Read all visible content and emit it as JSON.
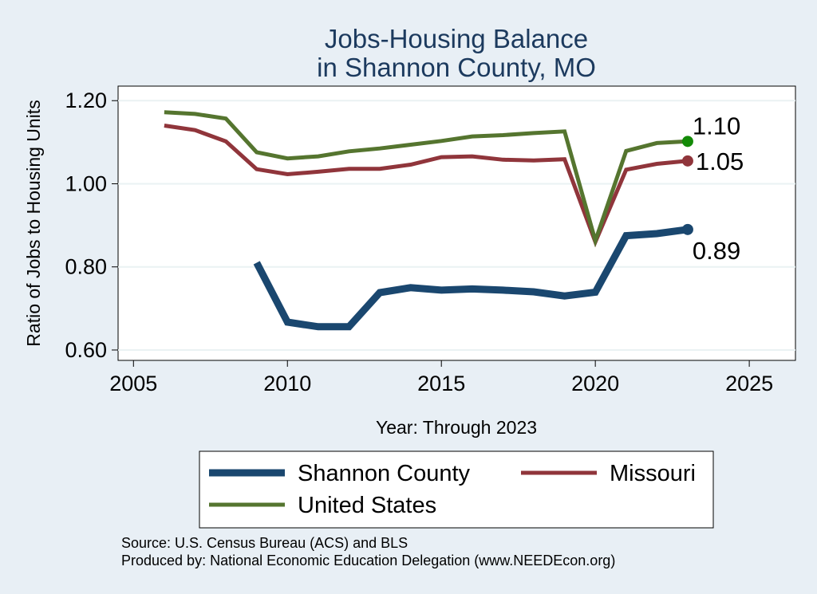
{
  "chart_data": {
    "type": "line",
    "title": [
      "Jobs-Housing Balance",
      "in Shannon County, MO"
    ],
    "xlabel": "Year: Through 2023",
    "ylabel": "Ratio of Jobs to Housing Units",
    "xlim": [
      2004.5,
      2026.5
    ],
    "ylim": [
      0.575,
      1.235
    ],
    "xticks": [
      2005,
      2010,
      2015,
      2020,
      2025
    ],
    "yticks": [
      0.6,
      0.8,
      1.0,
      1.2
    ],
    "ytick_labels": [
      "0.60",
      "0.80",
      "1.00",
      "1.20"
    ],
    "grid": true,
    "legend_position": "bottom",
    "series": [
      {
        "name": "Shannon County",
        "color": "#1a476f",
        "x": [
          2009,
          2010,
          2011,
          2012,
          2013,
          2014,
          2015,
          2016,
          2017,
          2018,
          2019,
          2020,
          2021,
          2022,
          2023
        ],
        "y": [
          0.81,
          0.667,
          0.656,
          0.656,
          0.738,
          0.75,
          0.744,
          0.747,
          0.744,
          0.74,
          0.73,
          0.739,
          0.875,
          0.88,
          0.89
        ],
        "end_label": "0.89"
      },
      {
        "name": "Missouri",
        "color": "#90353b",
        "x": [
          2006,
          2007,
          2008,
          2009,
          2010,
          2011,
          2012,
          2013,
          2014,
          2015,
          2016,
          2017,
          2018,
          2019,
          2020,
          2021,
          2022,
          2023
        ],
        "y": [
          1.14,
          1.129,
          1.102,
          1.035,
          1.023,
          1.029,
          1.036,
          1.036,
          1.046,
          1.064,
          1.066,
          1.058,
          1.056,
          1.059,
          0.86,
          1.034,
          1.048,
          1.055
        ],
        "end_label": "1.05"
      },
      {
        "name": "United States",
        "color": "#55752f",
        "x": [
          2006,
          2007,
          2008,
          2009,
          2010,
          2011,
          2012,
          2013,
          2014,
          2015,
          2016,
          2017,
          2018,
          2019,
          2020,
          2021,
          2022,
          2023
        ],
        "y": [
          1.172,
          1.168,
          1.157,
          1.076,
          1.061,
          1.066,
          1.078,
          1.085,
          1.094,
          1.103,
          1.114,
          1.117,
          1.122,
          1.126,
          0.863,
          1.079,
          1.098,
          1.102
        ],
        "end_label": "1.10",
        "end_marker_color": "#138a07"
      }
    ]
  },
  "source_text": "Source: U.S. Census Bureau (ACS) and BLS",
  "produced_text": "Produced by: National Economic Education Delegation (www.NEEDEcon.org)"
}
